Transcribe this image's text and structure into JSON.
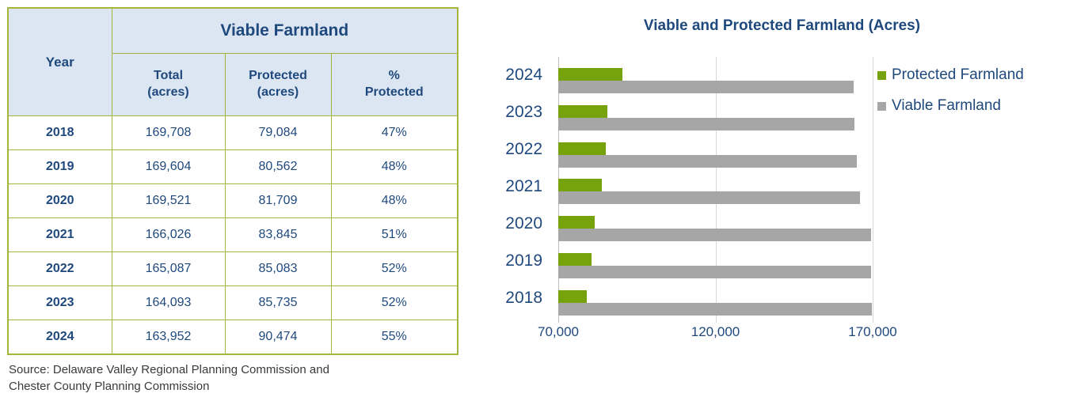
{
  "table": {
    "group_header": "Viable Farmland",
    "year_header": "Year",
    "columns": [
      {
        "line1": "Total",
        "line2": "(acres)"
      },
      {
        "line1": "Protected",
        "line2": "(acres)"
      },
      {
        "line1": "%",
        "line2": "Protected"
      }
    ],
    "rows": [
      {
        "year": "2018",
        "total": "169,708",
        "protected": "79,084",
        "pct": "47%"
      },
      {
        "year": "2019",
        "total": "169,604",
        "protected": "80,562",
        "pct": "48%"
      },
      {
        "year": "2020",
        "total": "169,521",
        "protected": "81,709",
        "pct": "48%"
      },
      {
        "year": "2021",
        "total": "166,026",
        "protected": "83,845",
        "pct": "51%"
      },
      {
        "year": "2022",
        "total": "165,087",
        "protected": "85,083",
        "pct": "52%"
      },
      {
        "year": "2023",
        "total": "164,093",
        "protected": "85,735",
        "pct": "52%"
      },
      {
        "year": "2024",
        "total": "163,952",
        "protected": "90,474",
        "pct": "55%"
      }
    ]
  },
  "source_note": {
    "line1": "Source: Delaware Valley Regional Planning Commission and",
    "line2": "Chester County Planning Commission"
  },
  "chart_data": {
    "type": "bar",
    "orientation": "horizontal",
    "title": "Viable and Protected Farmland (Acres)",
    "categories": [
      "2024",
      "2023",
      "2022",
      "2021",
      "2020",
      "2019",
      "2018"
    ],
    "series": [
      {
        "name": "Protected Farmland",
        "color": "#76a30b",
        "values": [
          90474,
          85735,
          85083,
          83845,
          81709,
          80562,
          79084
        ]
      },
      {
        "name": "Viable Farmland",
        "color": "#a6a6a6",
        "values": [
          163952,
          164093,
          165087,
          166026,
          169521,
          169604,
          169708
        ]
      }
    ],
    "xlim": [
      70000,
      170000
    ],
    "x_ticks": [
      {
        "label": "70,000",
        "value": 70000
      },
      {
        "label": "120,000",
        "value": 120000
      },
      {
        "label": "170,000",
        "value": 170000
      }
    ],
    "grid": true,
    "legend_position": "right"
  },
  "colors": {
    "navy_text": "#1f497d",
    "table_border": "#a6b63c",
    "header_bg": "#dce6f2",
    "protected_green": "#76a30b",
    "viable_gray": "#a6a6a6",
    "gridline": "#d9d9d9",
    "axis_line": "#bfbfbf"
  }
}
